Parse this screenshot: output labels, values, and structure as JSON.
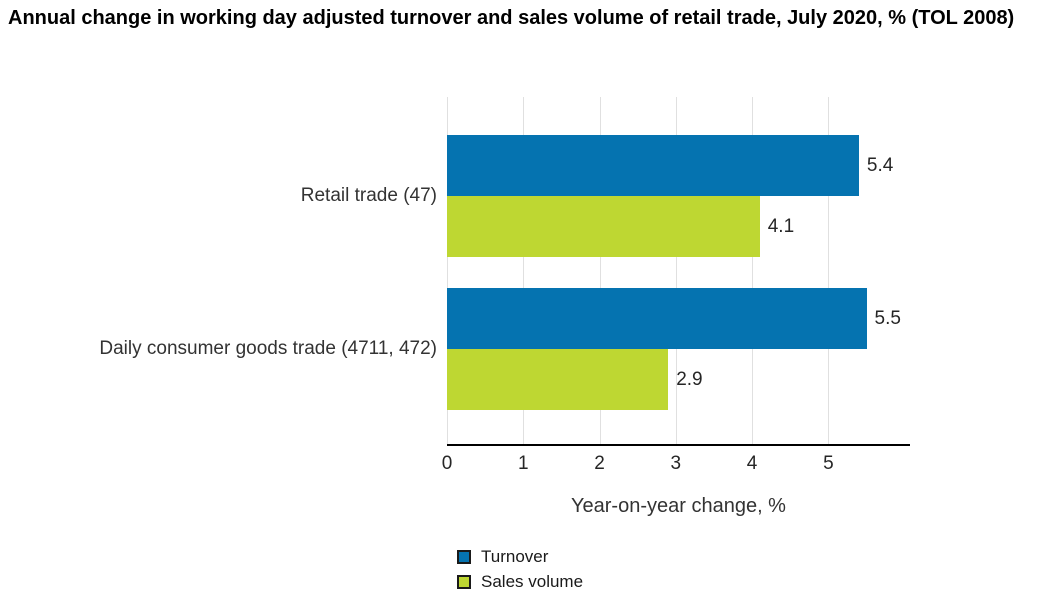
{
  "chart_data": {
    "type": "bar",
    "orientation": "horizontal",
    "title": "Annual change in working day adjusted turnover and sales volume of retail trade, July 2020, % (TOL 2008)",
    "categories": [
      "Retail trade (47)",
      "Daily consumer goods trade (4711, 472)"
    ],
    "series": [
      {
        "name": "Turnover",
        "color": "#0573b0",
        "values": [
          5.4,
          5.5
        ]
      },
      {
        "name": "Sales volume",
        "color": "#bed732",
        "values": [
          4.1,
          2.9
        ]
      }
    ],
    "xlabel": "Year-on-year change, %",
    "xticks": [
      "0",
      "1",
      "2",
      "3",
      "4",
      "5"
    ],
    "xlim": [
      0,
      6.07
    ],
    "grid": true,
    "gridline_color": "#e0e0e0",
    "axis_color": "#000000",
    "legend_position": "bottom"
  }
}
